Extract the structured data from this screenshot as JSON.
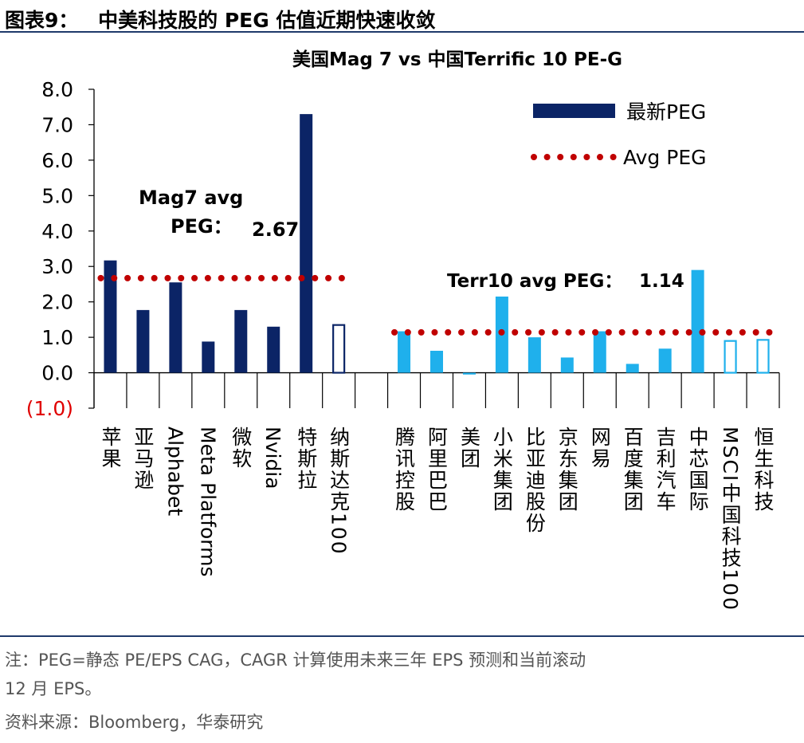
{
  "figure": {
    "label": "图表9：",
    "title": "中美科技股的 PEG 估值近期快速收敛"
  },
  "notes": {
    "line1": "注：PEG=静态 PE/EPS CAG，CAGR 计算使用未来三年 EPS 预测和当前滚动",
    "line2": "12 月 EPS。",
    "source": "资料来源：Bloomberg，华泰研究"
  },
  "chart_data": {
    "type": "bar",
    "title": "美国Mag 7 vs 中国Terrific 10 PE-G",
    "ylim": [
      -1.0,
      8.0
    ],
    "y_ticks": [
      "(1.0)",
      "0.0",
      "1.0",
      "2.0",
      "3.0",
      "4.0",
      "5.0",
      "6.0",
      "7.0",
      "8.0"
    ],
    "legend": {
      "position": "top-right",
      "bar_label": "最新PEG",
      "avg_label": "Avg PEG"
    },
    "colors": {
      "us": "#0b2466",
      "cn": "#1fb0ec",
      "avg": "#c00000",
      "negative_tick": "#e00000"
    },
    "groups": [
      {
        "name": "Mag7",
        "avg": 2.67,
        "annotation": [
          "Mag7 avg",
          "PEG：",
          "2.67"
        ],
        "items": [
          {
            "label": "苹果",
            "value": 3.17,
            "style": "solid",
            "vertical_cjk": true
          },
          {
            "label": "亚马逊",
            "value": 1.77,
            "style": "solid",
            "vertical_cjk": true
          },
          {
            "label": "Alphabet",
            "value": 2.55,
            "style": "solid",
            "vertical_cjk": false
          },
          {
            "label": "Meta Platforms",
            "value": 0.88,
            "style": "solid",
            "vertical_cjk": false
          },
          {
            "label": "微软",
            "value": 1.77,
            "style": "solid",
            "vertical_cjk": true
          },
          {
            "label": "Nvidia",
            "value": 1.3,
            "style": "solid",
            "vertical_cjk": false
          },
          {
            "label": "特斯拉",
            "value": 7.3,
            "style": "solid",
            "vertical_cjk": true
          },
          {
            "label": "纳斯达克100",
            "value": 1.37,
            "style": "outline",
            "vertical_cjk": true
          }
        ]
      },
      {
        "name": "Terr10",
        "avg": 1.14,
        "annotation": [
          "Terr10 avg PEG：",
          "1.14"
        ],
        "items": [
          {
            "label": "腾讯控股",
            "value": 1.17,
            "style": "solid",
            "vertical_cjk": true
          },
          {
            "label": "阿里巴巴",
            "value": 0.62,
            "style": "solid",
            "vertical_cjk": true
          },
          {
            "label": "美团",
            "value": -0.05,
            "style": "solid",
            "vertical_cjk": true
          },
          {
            "label": "小米集团",
            "value": 2.15,
            "style": "solid",
            "vertical_cjk": true
          },
          {
            "label": "比亚迪股份",
            "value": 1.0,
            "style": "solid",
            "vertical_cjk": true
          },
          {
            "label": "京东集团",
            "value": 0.43,
            "style": "solid",
            "vertical_cjk": true
          },
          {
            "label": "网易",
            "value": 1.17,
            "style": "solid",
            "vertical_cjk": true
          },
          {
            "label": "百度集团",
            "value": 0.25,
            "style": "solid",
            "vertical_cjk": true
          },
          {
            "label": "吉利汽车",
            "value": 0.68,
            "style": "solid",
            "vertical_cjk": true
          },
          {
            "label": "中芯国际",
            "value": 2.9,
            "style": "solid",
            "vertical_cjk": true
          },
          {
            "label": "MSCI中国科技100",
            "value": 0.92,
            "style": "outline",
            "vertical_cjk": true
          },
          {
            "label": "恒生科技",
            "value": 0.95,
            "style": "outline",
            "vertical_cjk": true
          }
        ]
      }
    ]
  }
}
